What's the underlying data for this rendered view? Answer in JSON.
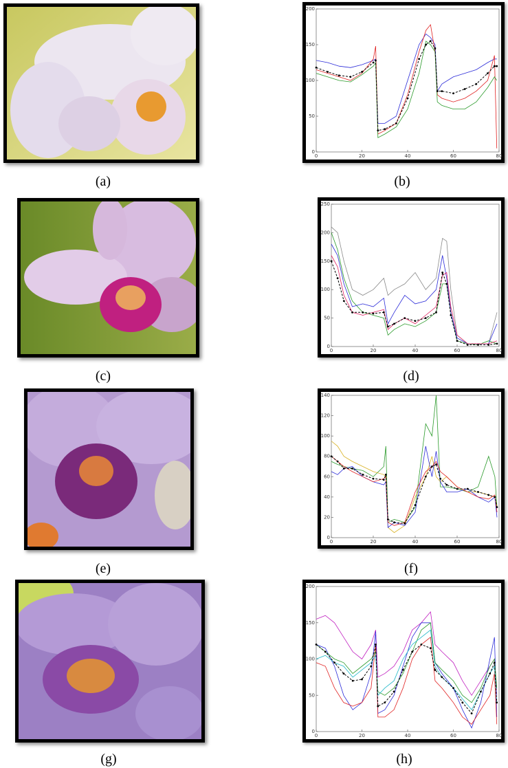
{
  "images": [
    {
      "caption": "(a)"
    },
    {
      "caption": "(c)"
    },
    {
      "caption": "(e)"
    },
    {
      "caption": "(g)"
    }
  ],
  "chart_data": [
    {
      "type": "line",
      "caption": "(b)",
      "xlim": [
        0,
        80
      ],
      "xticks": [
        0,
        20,
        40,
        60,
        80
      ],
      "ylim": [
        0,
        200
      ],
      "yticks": [
        0,
        50,
        100,
        150,
        200
      ],
      "x": [
        0,
        5,
        10,
        15,
        20,
        25,
        26,
        27,
        30,
        35,
        40,
        45,
        48,
        50,
        52,
        53,
        55,
        60,
        65,
        70,
        75,
        78,
        79
      ],
      "series": [
        {
          "color": "#2a2ad8",
          "values": [
            128,
            125,
            120,
            118,
            122,
            128,
            130,
            40,
            40,
            50,
            100,
            150,
            165,
            160,
            150,
            85,
            95,
            105,
            110,
            115,
            125,
            130,
            130
          ]
        },
        {
          "color": "#e02020",
          "values": [
            115,
            110,
            105,
            100,
            110,
            130,
            148,
            25,
            30,
            40,
            80,
            140,
            170,
            178,
            140,
            80,
            75,
            70,
            75,
            85,
            100,
            135,
            5
          ]
        },
        {
          "color": "#2a9a2a",
          "values": [
            110,
            105,
            100,
            98,
            108,
            120,
            125,
            20,
            25,
            35,
            60,
            110,
            155,
            150,
            140,
            70,
            65,
            60,
            60,
            70,
            90,
            105,
            100
          ]
        },
        {
          "color": "#000000",
          "dashed": true,
          "markers": true,
          "values": [
            118,
            112,
            107,
            105,
            112,
            125,
            128,
            30,
            32,
            40,
            75,
            130,
            150,
            155,
            145,
            85,
            85,
            82,
            88,
            95,
            110,
            120,
            120
          ]
        }
      ]
    },
    {
      "type": "line",
      "caption": "(d)",
      "xlim": [
        0,
        80
      ],
      "xticks": [
        0,
        20,
        40,
        60,
        80
      ],
      "ylim": [
        0,
        250
      ],
      "yticks": [
        0,
        50,
        100,
        150,
        200,
        250
      ],
      "x": [
        0,
        3,
        6,
        10,
        15,
        20,
        25,
        27,
        30,
        35,
        40,
        45,
        50,
        53,
        55,
        57,
        60,
        65,
        70,
        75,
        79
      ],
      "series": [
        {
          "color": "#888888",
          "values": [
            210,
            200,
            150,
            100,
            90,
            100,
            120,
            90,
            100,
            110,
            130,
            100,
            120,
            190,
            185,
            100,
            20,
            5,
            5,
            5,
            60
          ]
        },
        {
          "color": "#2a9a2a",
          "values": [
            200,
            170,
            120,
            80,
            60,
            55,
            50,
            20,
            30,
            40,
            35,
            45,
            60,
            110,
            110,
            60,
            10,
            5,
            3,
            10,
            5
          ]
        },
        {
          "color": "#2a2ad8",
          "values": [
            180,
            160,
            110,
            70,
            75,
            70,
            85,
            40,
            60,
            90,
            75,
            80,
            100,
            160,
            120,
            60,
            15,
            5,
            5,
            5,
            40
          ]
        },
        {
          "color": "#e02060",
          "values": [
            160,
            140,
            90,
            60,
            55,
            60,
            65,
            30,
            40,
            50,
            40,
            55,
            70,
            125,
            130,
            70,
            20,
            5,
            5,
            5,
            10
          ]
        },
        {
          "color": "#000000",
          "dashed": true,
          "markers": true,
          "values": [
            150,
            120,
            80,
            60,
            60,
            58,
            60,
            35,
            40,
            50,
            45,
            50,
            60,
            130,
            110,
            55,
            10,
            3,
            3,
            3,
            5
          ]
        }
      ]
    },
    {
      "type": "line",
      "caption": "(f)",
      "xlim": [
        0,
        80
      ],
      "xticks": [
        0,
        20,
        40,
        60,
        80
      ],
      "ylim": [
        0,
        140
      ],
      "yticks": [
        0,
        20,
        40,
        60,
        80,
        100,
        120,
        140
      ],
      "x": [
        0,
        3,
        6,
        10,
        15,
        20,
        25,
        26,
        27,
        30,
        35,
        40,
        45,
        48,
        50,
        52,
        55,
        60,
        65,
        70,
        75,
        78,
        79
      ],
      "series": [
        {
          "color": "#2a9a2a",
          "values": [
            75,
            72,
            70,
            68,
            66,
            60,
            70,
            90,
            15,
            18,
            15,
            30,
            112,
            100,
            140,
            50,
            50,
            48,
            45,
            50,
            80,
            60,
            30
          ]
        },
        {
          "color": "#d8b020",
          "values": [
            95,
            90,
            80,
            75,
            70,
            65,
            62,
            60,
            10,
            5,
            12,
            40,
            60,
            80,
            60,
            55,
            60,
            50,
            45,
            45,
            42,
            40,
            30
          ]
        },
        {
          "color": "#2a2ad8",
          "values": [
            65,
            62,
            68,
            70,
            60,
            55,
            52,
            55,
            10,
            15,
            12,
            25,
            90,
            60,
            85,
            55,
            45,
            45,
            48,
            40,
            35,
            40,
            20
          ]
        },
        {
          "color": "#e02020",
          "values": [
            80,
            75,
            70,
            65,
            60,
            55,
            58,
            60,
            15,
            12,
            15,
            45,
            65,
            70,
            75,
            65,
            60,
            50,
            45,
            40,
            38,
            42,
            25
          ]
        },
        {
          "color": "#000000",
          "dashed": true,
          "markers": true,
          "values": [
            80,
            75,
            68,
            68,
            62,
            58,
            57,
            62,
            18,
            15,
            14,
            32,
            60,
            70,
            72,
            58,
            52,
            48,
            48,
            45,
            42,
            40,
            30
          ]
        }
      ]
    },
    {
      "type": "line",
      "caption": "(h)",
      "xlim": [
        0,
        80
      ],
      "xticks": [
        0,
        20,
        40,
        60,
        80
      ],
      "ylim": [
        0,
        200
      ],
      "yticks": [
        0,
        50,
        100,
        150,
        200
      ],
      "x": [
        0,
        4,
        8,
        12,
        16,
        20,
        24,
        26,
        27,
        30,
        34,
        38,
        42,
        46,
        50,
        52,
        55,
        60,
        64,
        68,
        72,
        76,
        78,
        79
      ],
      "series": [
        {
          "color": "#c020c0",
          "values": [
            155,
            160,
            150,
            130,
            110,
            100,
            120,
            140,
            75,
            80,
            90,
            110,
            140,
            150,
            165,
            120,
            110,
            95,
            70,
            50,
            70,
            90,
            100,
            50
          ]
        },
        {
          "color": "#2a2ad8",
          "values": [
            120,
            115,
            90,
            50,
            30,
            40,
            80,
            138,
            25,
            30,
            50,
            90,
            130,
            150,
            150,
            95,
            80,
            60,
            30,
            5,
            40,
            100,
            130,
            20
          ]
        },
        {
          "color": "#e02020",
          "values": [
            95,
            90,
            60,
            40,
            35,
            40,
            60,
            120,
            20,
            20,
            30,
            60,
            100,
            120,
            130,
            70,
            60,
            40,
            20,
            10,
            30,
            50,
            80,
            10
          ]
        },
        {
          "color": "#2a9a2a",
          "values": [
            120,
            110,
            100,
            95,
            80,
            90,
            100,
            110,
            55,
            50,
            60,
            80,
            110,
            140,
            150,
            95,
            85,
            70,
            50,
            40,
            60,
            90,
            100,
            60
          ]
        },
        {
          "color": "#20b8c8",
          "values": [
            100,
            105,
            95,
            90,
            75,
            85,
            95,
            105,
            50,
            60,
            70,
            100,
            120,
            130,
            140,
            90,
            75,
            60,
            45,
            30,
            55,
            80,
            90,
            40
          ]
        },
        {
          "color": "#000000",
          "dashed": true,
          "markers": true,
          "values": [
            120,
            110,
            95,
            80,
            70,
            72,
            90,
            120,
            35,
            40,
            55,
            85,
            110,
            120,
            115,
            85,
            75,
            60,
            40,
            25,
            55,
            80,
            95,
            40
          ]
        }
      ]
    }
  ]
}
